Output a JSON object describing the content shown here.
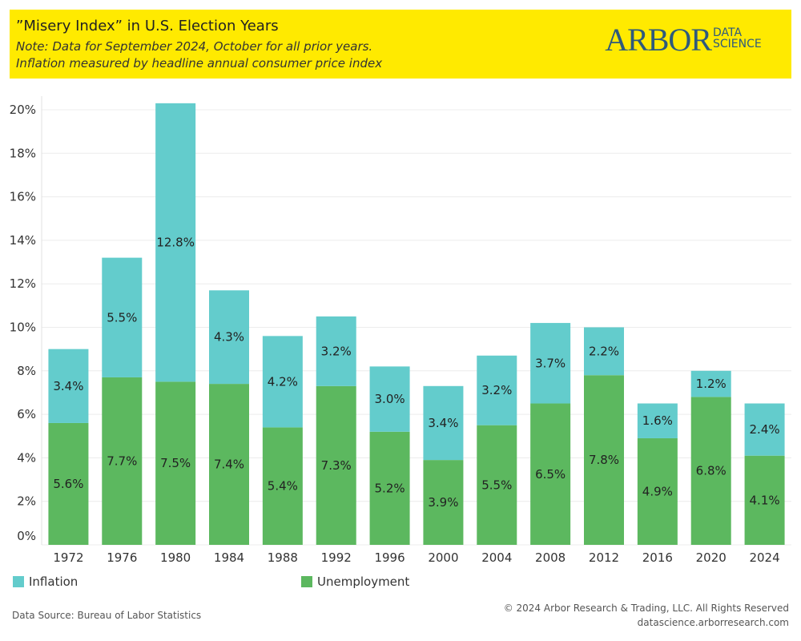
{
  "header": {
    "title": "”Misery Index” in U.S. Election Years",
    "note_line1": "Note: Data for September 2024, October for all prior years.",
    "note_line2": "Inflation measured by headline annual consumer price index",
    "logo_word": "ARBOR",
    "logo_sub_line1": "DATA",
    "logo_sub_line2": "SCIENCE"
  },
  "colors": {
    "header_background": "#ffea00",
    "inflation": "#63cccc",
    "unemployment": "#5cb85f",
    "logo": "#2e5a7c"
  },
  "chart_data": {
    "type": "bar",
    "stacked": true,
    "categories": [
      "1972",
      "1976",
      "1980",
      "1984",
      "1988",
      "1992",
      "1996",
      "2000",
      "2004",
      "2008",
      "2012",
      "2016",
      "2020",
      "2024"
    ],
    "series": [
      {
        "name": "Unemployment",
        "values": [
          5.6,
          7.7,
          7.5,
          7.4,
          5.4,
          7.3,
          5.2,
          3.9,
          5.5,
          6.5,
          7.8,
          4.9,
          6.8,
          4.1
        ]
      },
      {
        "name": "Inflation",
        "values": [
          3.4,
          5.5,
          12.8,
          4.3,
          4.2,
          3.2,
          3.0,
          3.4,
          3.2,
          3.7,
          2.2,
          1.6,
          1.2,
          2.4
        ]
      }
    ],
    "data_labels": {
      "Unemployment": [
        "5.6%",
        "7.7%",
        "7.5%",
        "7.4%",
        "5.4%",
        "7.3%",
        "5.2%",
        "3.9%",
        "5.5%",
        "6.5%",
        "7.8%",
        "4.9%",
        "6.8%",
        "4.1%"
      ],
      "Inflation": [
        "3.4%",
        "5.5%",
        "12.8%",
        "4.3%",
        "4.2%",
        "3.2%",
        "3.0%",
        "3.4%",
        "3.2%",
        "3.7%",
        "2.2%",
        "1.6%",
        "1.2%",
        "2.4%"
      ]
    },
    "y_ticks": [
      "0%",
      "2%",
      "4%",
      "6%",
      "8%",
      "10%",
      "12%",
      "14%",
      "16%",
      "18%",
      "20%"
    ],
    "ylim": [
      0,
      20
    ],
    "grid": true,
    "legend_position": "bottom"
  },
  "legend": {
    "inflation_label": "Inflation",
    "unemployment_label": "Unemployment"
  },
  "footer": {
    "source": "Data Source: Bureau of Labor Statistics",
    "copyright": "© 2024 Arbor Research & Trading, LLC. All Rights Reserved",
    "site": "datascience.arborresearch.com"
  }
}
